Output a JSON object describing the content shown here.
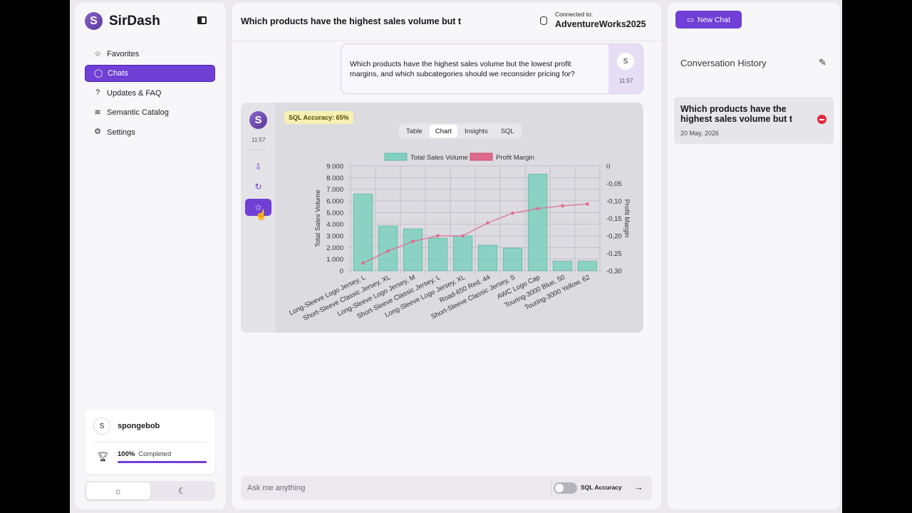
{
  "sidebar": {
    "brand_name": "SirDash",
    "logo_letter": "S",
    "items": [
      {
        "label": "Favorites",
        "icon": "☆"
      },
      {
        "label": "Chats",
        "icon": "◯"
      },
      {
        "label": "Updates & FAQ",
        "icon": "?"
      },
      {
        "label": "Semantic Catalog",
        "icon": "≋"
      },
      {
        "label": "Settings",
        "icon": "⚙"
      }
    ],
    "user": {
      "avatar": "S",
      "name": "spongebob",
      "progress_value": "100%",
      "progress_label": "Completed",
      "progress_fraction": 1.0
    },
    "theme": {
      "light_icon": "☼",
      "dark_icon": "☾"
    }
  },
  "main": {
    "title": "Which products have the highest sales volume but t",
    "connected_label": "Connected to:",
    "database": "AdventureWorks2025",
    "user_message": {
      "text": "Which products have the highest sales volume but the lowest profit margins, and which subcategories should we reconsider pricing for?",
      "avatar": "S",
      "time": "11:57"
    },
    "bot_message": {
      "logo": "S",
      "time": "11:57",
      "sql_accuracy": "SQL Accuracy: 65%",
      "tabs": [
        "Table",
        "Chart",
        "Insights",
        "SQL"
      ],
      "active_tab": "Chart"
    },
    "ask": {
      "placeholder": "Ask me anything",
      "toggle_label": "SQL Accuracy",
      "send_icon": "→"
    }
  },
  "right": {
    "new_chat_label": "New Chat",
    "history_title": "Conversation History",
    "item": {
      "title": "Which products have the highest sales volume but t",
      "date": "20 May, 2026"
    }
  },
  "colors": {
    "accent": "#6f3fd6",
    "bar": "#82cfc1",
    "line": "#e06a8a",
    "danger": "#e0293b"
  },
  "chart_data": {
    "type": "bar",
    "categories": [
      "Long-Sleeve Logo Jersey, L",
      "Short-Sleeve Classic Jersey, XL",
      "Long-Sleeve Logo Jersey, M",
      "Short-Sleeve Classic Jersey, L",
      "Long-Sleeve Logo Jersey, XL",
      "Road-650 Red, 44",
      "Short-Sleeve Classic Jersey, S",
      "AWC Logo Cap",
      "Touring-3000 Blue, 50",
      "Touring-3000 Yellow, 62"
    ],
    "series": [
      {
        "name": "Total Sales Volume",
        "type": "bar",
        "axis": "left",
        "values": [
          6600,
          3850,
          3600,
          2800,
          3000,
          2200,
          1950,
          8300,
          820,
          820
        ]
      },
      {
        "name": "Profit Margin",
        "type": "line",
        "axis": "right",
        "values": [
          -0.278,
          -0.244,
          -0.216,
          -0.2,
          -0.2,
          -0.163,
          -0.135,
          -0.122,
          -0.114,
          -0.109
        ]
      }
    ],
    "ylabel": "Total Sales Volume",
    "y2label": "Profit Margin",
    "ylim": [
      0,
      9000
    ],
    "y2lim": [
      -0.3,
      0
    ],
    "yticks": [
      "0",
      "1.000",
      "2.000",
      "3.000",
      "4.000",
      "5.000",
      "6.000",
      "7.000",
      "8.000",
      "9.000"
    ],
    "y2ticks": [
      "-0,30",
      "-0,25",
      "-0,20",
      "-0,15",
      "-0,10",
      "-0,05",
      "0"
    ],
    "legend": "top"
  }
}
